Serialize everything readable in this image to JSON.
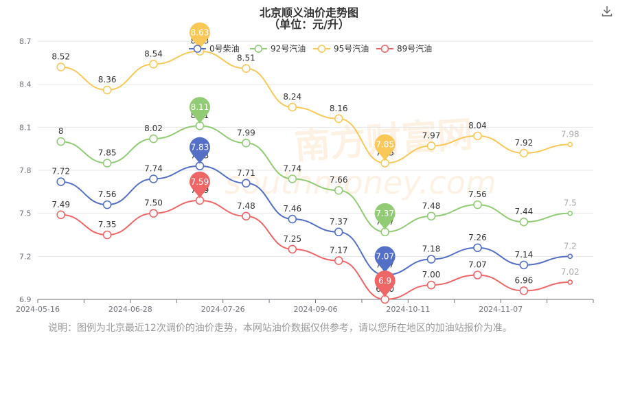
{
  "title": "北京顺义油价走势图",
  "subtitle": "（单位：元/升）",
  "note": "说明：图例为北京最近12次调价的油价走势，本网站油价数据仅供参考，请以您所在地区的加油站报价为准。",
  "watermark": "南方财富网",
  "watermark_url": "southmoney.com",
  "download_icon": "download-icon",
  "chart_data": {
    "type": "line",
    "title": "北京顺义油价走势图",
    "subtitle": "（单位：元/升）",
    "x_ticks": [
      "2024-05-16",
      "2024-06-28",
      "2024-07-26",
      "2024-09-06",
      "2024-10-11",
      "2024-11-07"
    ],
    "x_tick_index": [
      0,
      2,
      4,
      6,
      8,
      10
    ],
    "y_ticks": [
      "6.9",
      "7.2",
      "7.5",
      "7.8",
      "8.1",
      "8.4",
      "8.7"
    ],
    "ylim": [
      6.9,
      8.7
    ],
    "point_count": 12,
    "legend_position": "top",
    "series": [
      {
        "name": "0号柴油",
        "color": "#5470c6",
        "values": [
          7.72,
          7.56,
          7.74,
          7.83,
          7.71,
          7.46,
          7.37,
          7.07,
          7.18,
          7.26,
          7.14,
          7.2
        ],
        "labels": [
          "7.72",
          "7.56",
          "7.74",
          "7.83",
          "7.71",
          "7.46",
          "7.37",
          "7.07",
          "7.18",
          "7.26",
          "7.14",
          "7.2"
        ],
        "max_label": "7.83",
        "min_label": "7.07"
      },
      {
        "name": "92号汽油",
        "color": "#91cc75",
        "values": [
          8.0,
          7.85,
          8.02,
          8.11,
          7.99,
          7.74,
          7.66,
          7.37,
          7.48,
          7.56,
          7.44,
          7.5
        ],
        "labels": [
          "8",
          "7.85",
          "8.02",
          "8.11",
          "7.99",
          "7.74",
          "7.66",
          "7.37",
          "7.48",
          "7.56",
          "7.44",
          "7.5"
        ],
        "max_label": "8.11",
        "min_label": "7.37"
      },
      {
        "name": "95号汽油",
        "color": "#fac858",
        "values": [
          8.52,
          8.36,
          8.54,
          8.63,
          8.51,
          8.24,
          8.16,
          7.85,
          7.97,
          8.04,
          7.92,
          7.98
        ],
        "labels": [
          "8.52",
          "8.36",
          "8.54",
          "8.63",
          "8.51",
          "8.24",
          "8.16",
          "7.85",
          "7.97",
          "8.04",
          "7.92",
          "7.98"
        ],
        "max_label": "8.63",
        "min_label": "7.85"
      },
      {
        "name": "89号汽油",
        "color": "#ee6666",
        "values": [
          7.49,
          7.35,
          7.5,
          7.59,
          7.48,
          7.25,
          7.17,
          6.9,
          7.0,
          7.07,
          6.96,
          7.02
        ],
        "labels": [
          "7.49",
          "7.35",
          "7.50",
          "7.59",
          "7.48",
          "7.25",
          "7.17",
          "6.90",
          "7.00",
          "7.07",
          "6.96",
          "7.02"
        ],
        "max_label": "7.59",
        "min_label": "6.9"
      }
    ]
  }
}
